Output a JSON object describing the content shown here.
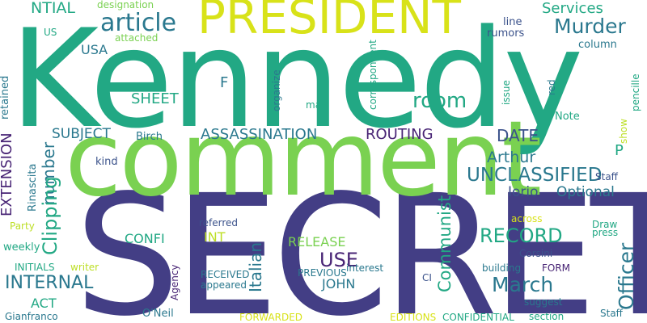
{
  "words": [
    {
      "text": "Kennedy",
      "color": "#22a884"
    },
    {
      "text": "SECRET",
      "color": "#433e85"
    },
    {
      "text": "comment",
      "color": "#7ad151"
    },
    {
      "text": "PRESIDENT",
      "color": "#d8e219"
    },
    {
      "text": "article",
      "color": "#2a788e"
    },
    {
      "text": "Murder",
      "color": "#2a788e"
    },
    {
      "text": "Services",
      "color": "#22a884"
    },
    {
      "text": "NTIAL",
      "color": "#22a884"
    },
    {
      "text": "designation",
      "color": "#7ad151"
    },
    {
      "text": "US",
      "color": "#22a884"
    },
    {
      "text": "attached",
      "color": "#7ad151"
    },
    {
      "text": "USA",
      "color": "#2a788e"
    },
    {
      "text": "F",
      "color": "#2a788e"
    },
    {
      "text": "SHEET",
      "color": "#22a884"
    },
    {
      "text": "room",
      "color": "#22a884"
    },
    {
      "text": "line",
      "color": "#3b528b"
    },
    {
      "text": "rumors",
      "color": "#3b528b"
    },
    {
      "text": "column",
      "color": "#2a788e"
    },
    {
      "text": "DATE",
      "color": "#3b528b"
    },
    {
      "text": "Note",
      "color": "#22a884"
    },
    {
      "text": "Arthur",
      "color": "#2a788e"
    },
    {
      "text": "UNCLASSIFIED",
      "color": "#2a788e"
    },
    {
      "text": "P",
      "color": "#22a884"
    },
    {
      "text": "Iorio",
      "color": "#3b528b"
    },
    {
      "text": "Optional",
      "color": "#2a788e"
    },
    {
      "text": "Officer",
      "color": "#2a788e"
    },
    {
      "text": "Staff",
      "color": "#3b528b"
    },
    {
      "text": "SUBJECT",
      "color": "#2a788e"
    },
    {
      "text": "ASSASSINATION",
      "color": "#2a788e"
    },
    {
      "text": "ROUTING",
      "color": "#482475"
    },
    {
      "text": "Birch",
      "color": "#2a788e"
    },
    {
      "text": "kind",
      "color": "#3b528b"
    },
    {
      "text": "number",
      "color": "#2a788e"
    },
    {
      "text": "Clipping",
      "color": "#22a884"
    },
    {
      "text": "EXTENSION",
      "color": "#482475"
    },
    {
      "text": "retained",
      "color": "#2a788e"
    },
    {
      "text": "Rinascita",
      "color": "#2a788e"
    },
    {
      "text": "Party",
      "color": "#bddf26"
    },
    {
      "text": "weekly",
      "color": "#22a884"
    },
    {
      "text": "INITIALS",
      "color": "#22a884"
    },
    {
      "text": "writer",
      "color": "#bddf26"
    },
    {
      "text": "CONFI",
      "color": "#22a884"
    },
    {
      "text": "INT",
      "color": "#bddf26"
    },
    {
      "text": "referred",
      "color": "#3b528b"
    },
    {
      "text": "RELEASE",
      "color": "#7ad151"
    },
    {
      "text": "USE",
      "color": "#482475"
    },
    {
      "text": "RECORD",
      "color": "#22a884"
    },
    {
      "text": "across",
      "color": "#d8e219"
    },
    {
      "text": "Draw",
      "color": "#22a884"
    },
    {
      "text": "press",
      "color": "#22a884"
    },
    {
      "text": "Communist",
      "color": "#22a884"
    },
    {
      "text": "Italian",
      "color": "#2a788e"
    },
    {
      "text": "INTERNAL",
      "color": "#2a788e"
    },
    {
      "text": "Agency",
      "color": "#482475"
    },
    {
      "text": "RECEIVED",
      "color": "#2a788e"
    },
    {
      "text": "appeared",
      "color": "#2a788e"
    },
    {
      "text": "interest",
      "color": "#2a788e"
    },
    {
      "text": "PREVIOUS",
      "color": "#2a788e"
    },
    {
      "text": "JOHN",
      "color": "#2a788e"
    },
    {
      "text": "March",
      "color": "#2a788e"
    },
    {
      "text": "Corsini",
      "color": "#3b528b"
    },
    {
      "text": "building",
      "color": "#2a788e"
    },
    {
      "text": "FORM",
      "color": "#482475"
    },
    {
      "text": "CI",
      "color": "#3b528b"
    },
    {
      "text": "suggest",
      "color": "#2a788e"
    },
    {
      "text": "ACT",
      "color": "#22a884"
    },
    {
      "text": "Gianfranco",
      "color": "#2a788e"
    },
    {
      "text": "O'Neil",
      "color": "#2a788e"
    },
    {
      "text": "FORWARDED",
      "color": "#d8e219"
    },
    {
      "text": "EDITIONS",
      "color": "#d8e219"
    },
    {
      "text": "CONFIDENTIAL",
      "color": "#22a884"
    },
    {
      "text": "section",
      "color": "#22a884"
    },
    {
      "text": "Staff",
      "color": "#2a788e"
    },
    {
      "text": "may",
      "color": "#22a884"
    },
    {
      "text": "organize",
      "color": "#2a788e"
    },
    {
      "text": "correspondent",
      "color": "#22a884"
    },
    {
      "text": "issue",
      "color": "#22a884"
    },
    {
      "text": "red",
      "color": "#2a788e"
    },
    {
      "text": "show",
      "color": "#bddf26"
    },
    {
      "text": "pencille",
      "color": "#22a884"
    }
  ]
}
